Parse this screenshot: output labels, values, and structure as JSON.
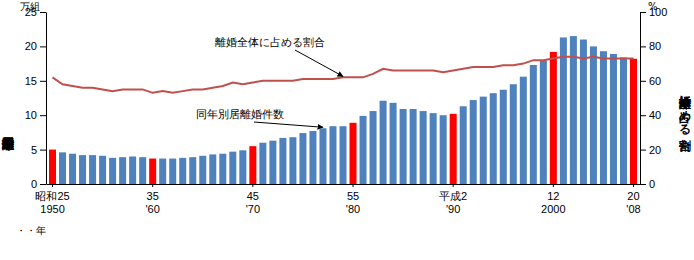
{
  "chart_data": {
    "type": "bar",
    "ylabel": "同年別居離婚件数",
    "y2label": "離婚全体に占める割合",
    "yunit": "万組",
    "y2unit": "%",
    "xunit": "・・年",
    "categories": [
      "昭和25\n1950",
      null,
      null,
      null,
      null,
      null,
      null,
      null,
      null,
      null,
      "35\n'60",
      null,
      null,
      null,
      null,
      null,
      null,
      null,
      null,
      null,
      "45\n'70",
      null,
      null,
      null,
      null,
      null,
      null,
      null,
      null,
      null,
      "55\n'80",
      null,
      null,
      null,
      null,
      null,
      null,
      null,
      null,
      null,
      "平成2\n'90",
      null,
      null,
      null,
      null,
      null,
      null,
      null,
      null,
      null,
      "12\n2000",
      null,
      null,
      null,
      null,
      null,
      null,
      null,
      "20\n'08"
    ],
    "series": [
      {
        "name": "同年別居離婚件数",
        "type": "bar",
        "colors": [
          "#ff0000",
          "#4f81bd",
          "#4f81bd",
          "#4f81bd",
          "#4f81bd",
          "#4f81bd",
          "#4f81bd",
          "#4f81bd",
          "#4f81bd",
          "#4f81bd",
          "#ff0000",
          "#4f81bd",
          "#4f81bd",
          "#4f81bd",
          "#4f81bd",
          "#4f81bd",
          "#4f81bd",
          "#4f81bd",
          "#4f81bd",
          "#4f81bd",
          "#ff0000",
          "#4f81bd",
          "#4f81bd",
          "#4f81bd",
          "#4f81bd",
          "#4f81bd",
          "#4f81bd",
          "#4f81bd",
          "#4f81bd",
          "#4f81bd",
          "#ff0000",
          "#4f81bd",
          "#4f81bd",
          "#4f81bd",
          "#4f81bd",
          "#4f81bd",
          "#4f81bd",
          "#4f81bd",
          "#4f81bd",
          "#4f81bd",
          "#ff0000",
          "#4f81bd",
          "#4f81bd",
          "#4f81bd",
          "#4f81bd",
          "#4f81bd",
          "#4f81bd",
          "#4f81bd",
          "#4f81bd",
          "#4f81bd",
          "#ff0000",
          "#4f81bd",
          "#4f81bd",
          "#4f81bd",
          "#4f81bd",
          "#4f81bd",
          "#4f81bd",
          "#4f81bd",
          "#ff0000"
        ],
        "values": [
          5.0,
          4.6,
          4.4,
          4.2,
          4.2,
          4.1,
          3.8,
          3.9,
          4.0,
          3.9,
          3.7,
          3.7,
          3.7,
          3.8,
          3.9,
          4.1,
          4.3,
          4.4,
          4.7,
          4.9,
          5.5,
          6.0,
          6.3,
          6.7,
          6.8,
          7.4,
          7.7,
          8.1,
          8.4,
          8.4,
          8.9,
          9.9,
          10.6,
          12.1,
          11.8,
          10.9,
          10.9,
          10.6,
          10.3,
          10.0,
          10.2,
          11.3,
          12.2,
          12.7,
          13.2,
          13.7,
          14.5,
          15.6,
          17.3,
          18.0,
          19.2,
          21.3,
          21.5,
          21.0,
          20.0,
          19.3,
          18.9,
          18.4,
          18.2
        ]
      },
      {
        "name": "離婚全体に占める割合",
        "type": "line",
        "axis": "y2",
        "color": "#c0504d",
        "values": [
          62,
          58,
          57,
          56,
          56,
          55,
          54,
          55,
          55,
          55,
          53,
          54,
          53,
          54,
          55,
          55,
          56,
          57,
          59,
          58,
          59,
          60,
          60,
          60,
          60,
          61,
          61,
          61,
          61,
          62,
          62,
          62,
          64,
          67,
          66,
          66,
          66,
          66,
          66,
          65,
          66,
          67,
          68,
          68,
          68,
          69,
          69,
          70,
          72,
          72,
          73,
          74,
          74,
          73,
          74,
          73,
          73,
          73,
          73
        ]
      }
    ],
    "ylim": [
      0,
      25
    ],
    "yticks": [
      0,
      5,
      10,
      15,
      20,
      25
    ],
    "y2lim": [
      0,
      100
    ],
    "y2ticks": [
      0,
      20,
      40,
      60,
      80,
      100
    ],
    "grid": false,
    "tick_labels": true
  }
}
